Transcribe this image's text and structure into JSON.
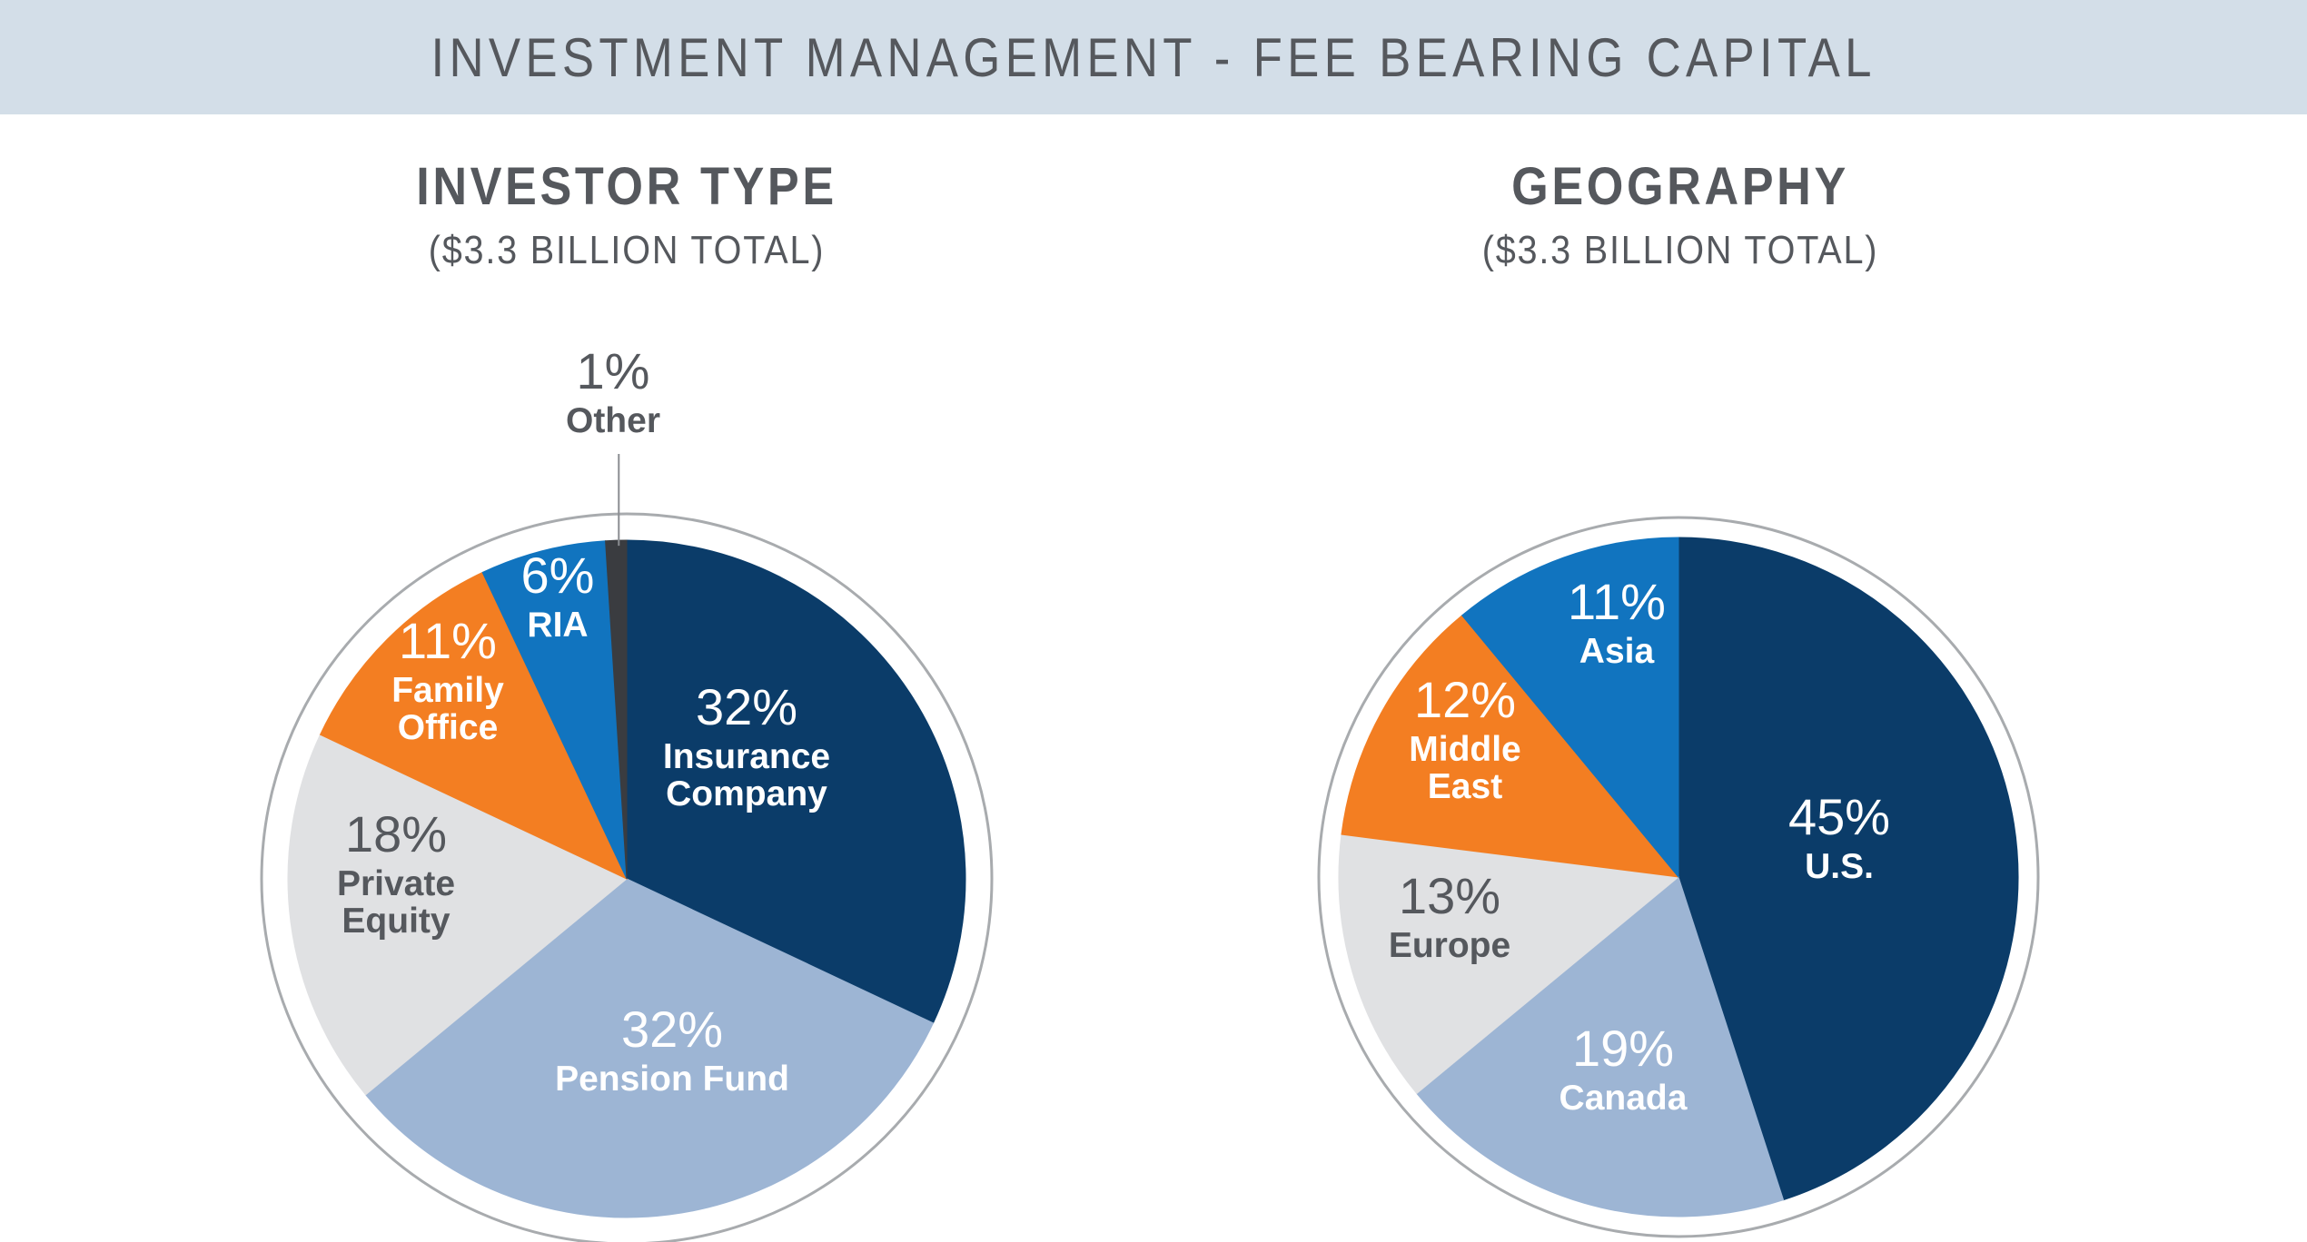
{
  "banner": {
    "title": "INVESTMENT MANAGEMENT - FEE BEARING CAPITAL"
  },
  "chart_data": [
    {
      "type": "pie",
      "title": "INVESTOR TYPE",
      "subtitle": "($3.3 BILLION TOTAL)",
      "slices": [
        {
          "label_lines": [
            "Insurance",
            "Company"
          ],
          "percent_label": "32%",
          "value": 32,
          "color": "#0b3c69",
          "text_color": "#ffffff"
        },
        {
          "label_lines": [
            "Pension Fund"
          ],
          "percent_label": "32%",
          "value": 32,
          "color": "#9db5d4",
          "text_color": "#ffffff"
        },
        {
          "label_lines": [
            "Private",
            "Equity"
          ],
          "percent_label": "18%",
          "value": 18,
          "color": "#e0e1e3",
          "text_color": "#55585d"
        },
        {
          "label_lines": [
            "Family",
            "Office"
          ],
          "percent_label": "11%",
          "value": 11,
          "color": "#f37e22",
          "text_color": "#ffffff"
        },
        {
          "label_lines": [
            "RIA"
          ],
          "percent_label": "6%",
          "value": 6,
          "color": "#1174bf",
          "text_color": "#ffffff"
        },
        {
          "label_lines": [
            "Other"
          ],
          "percent_label": "1%",
          "value": 1,
          "color": "#3a3c40",
          "text_color": "#55585d"
        }
      ]
    },
    {
      "type": "pie",
      "title": "GEOGRAPHY",
      "subtitle": "($3.3 BILLION TOTAL)",
      "slices": [
        {
          "label_lines": [
            "U.S."
          ],
          "percent_label": "45%",
          "value": 45,
          "color": "#0b3c69",
          "text_color": "#ffffff"
        },
        {
          "label_lines": [
            "Canada"
          ],
          "percent_label": "19%",
          "value": 19,
          "color": "#9db5d4",
          "text_color": "#ffffff"
        },
        {
          "label_lines": [
            "Europe"
          ],
          "percent_label": "13%",
          "value": 13,
          "color": "#e0e1e3",
          "text_color": "#55585d"
        },
        {
          "label_lines": [
            "Middle",
            "East"
          ],
          "percent_label": "12%",
          "value": 12,
          "color": "#f37e22",
          "text_color": "#ffffff"
        },
        {
          "label_lines": [
            "Asia"
          ],
          "percent_label": "11%",
          "value": 11,
          "color": "#1174bf",
          "text_color": "#ffffff"
        }
      ]
    }
  ]
}
